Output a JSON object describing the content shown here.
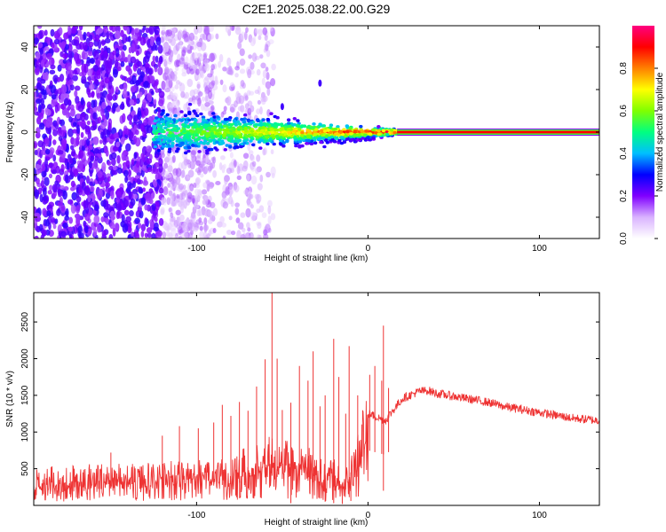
{
  "title": "C2E1.2025.038.22.00.G29",
  "chart_data": [
    {
      "type": "heatmap",
      "xlabel": "Height of straight line (km)",
      "ylabel": "Frequency (Hz)",
      "xlim": [
        -195,
        135
      ],
      "ylim": [
        -50,
        50
      ],
      "x_ticks": [
        -100,
        0,
        100
      ],
      "x_tick_labels": [
        "-100",
        "0",
        "100"
      ],
      "y_ticks": [
        -40,
        -20,
        0,
        20,
        40
      ],
      "y_tick_labels": [
        "-40",
        "-20",
        "0",
        "20",
        "40"
      ],
      "grid": false,
      "colorbar": {
        "label": "Normalized spectral amplitude",
        "range": [
          0,
          1
        ],
        "ticks": [
          0.0,
          0.2,
          0.4,
          0.6,
          0.8
        ],
        "tick_labels": [
          "0.0",
          "0.2",
          "0.4",
          "0.6",
          "0.8"
        ],
        "colormap": [
          "#ffffff",
          "#d9b3ff",
          "#8000ff",
          "#0000ff",
          "#00bfff",
          "#00ff80",
          "#80ff00",
          "#ffff00",
          "#ff8000",
          "#ff0000",
          "#ff0080"
        ]
      },
      "features": {
        "noise_region_x": [
          -195,
          -90
        ],
        "carrier_frequency_hz": 0,
        "carrier_start_x": 17,
        "carrier_end_x": 135,
        "transition_x": [
          -125,
          17
        ],
        "outlier_points": [
          {
            "x": -28,
            "y": 23
          },
          {
            "x": -50,
            "y": 12
          }
        ]
      }
    },
    {
      "type": "line",
      "xlabel": "Height of straight line (km)",
      "ylabel": "SNR (10 * v/v)",
      "xlim": [
        -195,
        135
      ],
      "ylim": [
        0,
        2900
      ],
      "x_ticks": [
        -100,
        0,
        100
      ],
      "x_tick_labels": [
        "-100",
        "0",
        "100"
      ],
      "y_ticks": [
        500,
        1000,
        1500,
        2000,
        2500
      ],
      "y_tick_labels": [
        "500",
        "1000",
        "1500",
        "2000",
        "2500"
      ],
      "grid": false,
      "series": [
        {
          "color": "#ee3333",
          "x": [
            -195,
            -180,
            -160,
            -140,
            -120,
            -100,
            -90,
            -80,
            -70,
            -60,
            -55,
            -50,
            -45,
            -40,
            -35,
            -30,
            -25,
            -20,
            -15,
            -10,
            -5,
            0,
            5,
            10,
            15,
            20,
            25,
            30,
            35,
            40,
            50,
            60,
            70,
            80,
            90,
            100,
            110,
            120,
            135
          ],
          "y": [
            350,
            360,
            380,
            380,
            400,
            430,
            450,
            480,
            550,
            650,
            680,
            600,
            600,
            580,
            560,
            500,
            380,
            430,
            300,
            450,
            700,
            1250,
            1200,
            1150,
            1300,
            1450,
            1500,
            1550,
            1560,
            1520,
            1480,
            1440,
            1400,
            1340,
            1300,
            1260,
            1220,
            1180,
            1150
          ]
        }
      ],
      "spikes": [
        {
          "x": -150,
          "y": 720
        },
        {
          "x": -120,
          "y": 950
        },
        {
          "x": -110,
          "y": 1080
        },
        {
          "x": -99,
          "y": 1050
        },
        {
          "x": -90,
          "y": 1130
        },
        {
          "x": -85,
          "y": 1370
        },
        {
          "x": -80,
          "y": 1220
        },
        {
          "x": -75,
          "y": 1410
        },
        {
          "x": -70,
          "y": 1290
        },
        {
          "x": -65,
          "y": 1620
        },
        {
          "x": -60,
          "y": 1990
        },
        {
          "x": -56,
          "y": 2900
        },
        {
          "x": -53,
          "y": 2000
        },
        {
          "x": -50,
          "y": 1300
        },
        {
          "x": -45,
          "y": 1400
        },
        {
          "x": -40,
          "y": 1900
        },
        {
          "x": -35,
          "y": 1700
        },
        {
          "x": -32,
          "y": 2100
        },
        {
          "x": -28,
          "y": 1350
        },
        {
          "x": -25,
          "y": 1500
        },
        {
          "x": -20,
          "y": 2270
        },
        {
          "x": -17,
          "y": 1750
        },
        {
          "x": -13,
          "y": 1250
        },
        {
          "x": -11,
          "y": 2170
        },
        {
          "x": -6,
          "y": 1500
        },
        {
          "x": 1,
          "y": 1780
        },
        {
          "x": 4,
          "y": 1900
        },
        {
          "x": 8,
          "y": 1700
        },
        {
          "x": 9,
          "y": 2450
        },
        {
          "x": 12,
          "y": 1600
        }
      ],
      "dips": [
        {
          "x": -20,
          "y": 30
        },
        {
          "x": -15,
          "y": 20
        },
        {
          "x": -10,
          "y": 60
        },
        {
          "x": -25,
          "y": 50
        },
        {
          "x": -45,
          "y": 30
        },
        {
          "x": 9,
          "y": 200
        }
      ]
    }
  ]
}
